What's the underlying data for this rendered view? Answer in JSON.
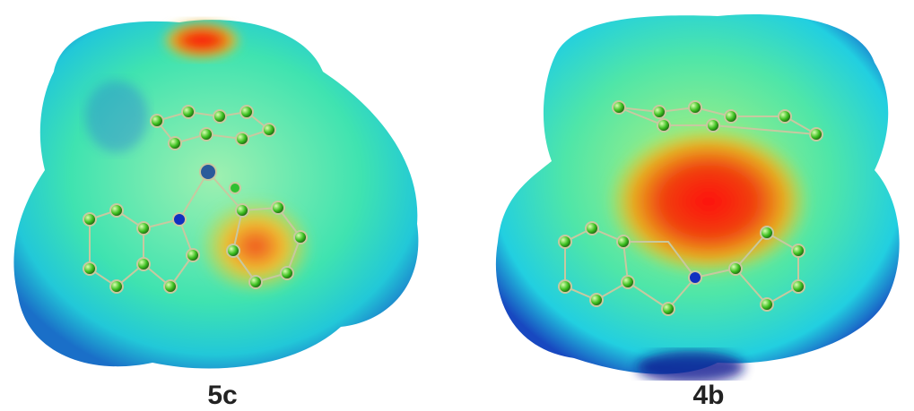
{
  "panels": [
    {
      "label": "5c"
    },
    {
      "label": "4b"
    }
  ]
}
